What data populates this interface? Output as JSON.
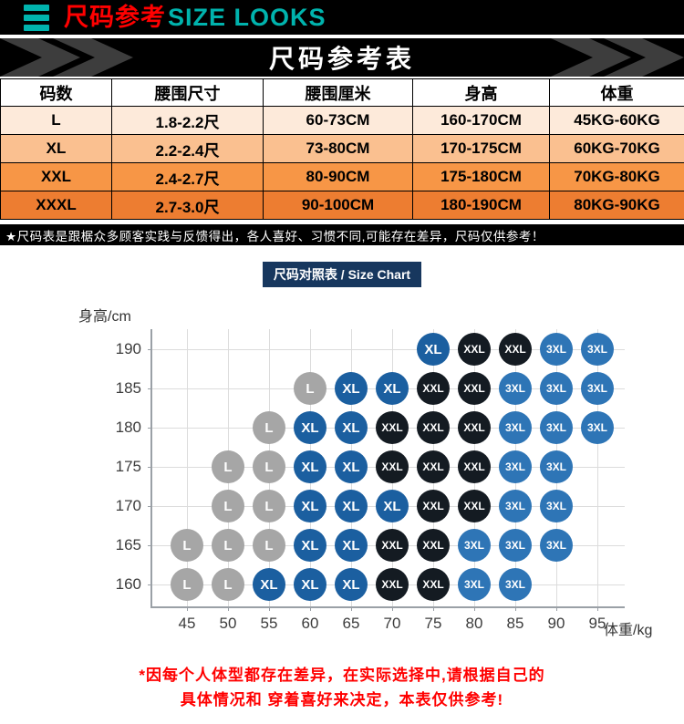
{
  "header": {
    "title_cn": "尺码参考",
    "title_en": "SIZE LOOKS",
    "title_color": "#ff0000",
    "accent_color": "#00b3ad"
  },
  "banner": {
    "title": "尺码参考表"
  },
  "size_table": {
    "headers": [
      "码数",
      "腰围尺寸",
      "腰围厘米",
      "身高",
      "体重"
    ],
    "rows": [
      {
        "cells": [
          "L",
          "1.8-2.2尺",
          "60-73CM",
          "160-170CM",
          "45KG-60KG"
        ],
        "bg": "#fdeada"
      },
      {
        "cells": [
          "XL",
          "2.2-2.4尺",
          "73-80CM",
          "170-175CM",
          "60KG-70KG"
        ],
        "bg": "#fac090"
      },
      {
        "cells": [
          "XXL",
          "2.4-2.7尺",
          "80-90CM",
          "175-180CM",
          "70KG-80KG"
        ],
        "bg": "#f79646"
      },
      {
        "cells": [
          "XXXL",
          "2.7-3.0尺",
          "90-100CM",
          "180-190CM",
          "80KG-90KG"
        ],
        "bg": "#ed7d31"
      }
    ]
  },
  "note_bar": {
    "text": "★尺码表是跟椐众多顾客实践与反馈得出，各人喜好、习惯不同,可能存在差异，尺码仅供参考！"
  },
  "chart_header": {
    "label": "尺码对照表 / Size Chart",
    "bg": "#17375e"
  },
  "chart_data": {
    "type": "scatter",
    "title": "尺码对照表 / Size Chart",
    "xlabel": "体重/kg",
    "ylabel": "身高/cm",
    "x_ticks": [
      45,
      50,
      55,
      60,
      65,
      70,
      75,
      80,
      85,
      90,
      95
    ],
    "y_ticks": [
      190,
      185,
      180,
      175,
      170,
      165,
      160
    ],
    "xlim": [
      45,
      95
    ],
    "ylim": [
      160,
      190
    ],
    "grid": true,
    "size_colors": {
      "L": "#a6a6a6",
      "XL": "#1b5fa0",
      "XXL": "#141b22",
      "3XL": "#2e75b6"
    },
    "points_by_height": [
      {
        "height": 190,
        "entries": [
          [
            75,
            "XL"
          ],
          [
            80,
            "XXL"
          ],
          [
            85,
            "XXL"
          ],
          [
            90,
            "3XL"
          ],
          [
            95,
            "3XL"
          ]
        ]
      },
      {
        "height": 185,
        "entries": [
          [
            60,
            "L"
          ],
          [
            65,
            "XL"
          ],
          [
            70,
            "XL"
          ],
          [
            75,
            "XXL"
          ],
          [
            80,
            "XXL"
          ],
          [
            85,
            "3XL"
          ],
          [
            90,
            "3XL"
          ],
          [
            95,
            "3XL"
          ]
        ]
      },
      {
        "height": 180,
        "entries": [
          [
            55,
            "L"
          ],
          [
            60,
            "XL"
          ],
          [
            65,
            "XL"
          ],
          [
            70,
            "XXL"
          ],
          [
            75,
            "XXL"
          ],
          [
            80,
            "XXL"
          ],
          [
            85,
            "3XL"
          ],
          [
            90,
            "3XL"
          ],
          [
            95,
            "3XL"
          ]
        ]
      },
      {
        "height": 175,
        "entries": [
          [
            50,
            "L"
          ],
          [
            55,
            "L"
          ],
          [
            60,
            "XL"
          ],
          [
            65,
            "XL"
          ],
          [
            70,
            "XXL"
          ],
          [
            75,
            "XXL"
          ],
          [
            80,
            "XXL"
          ],
          [
            85,
            "3XL"
          ],
          [
            90,
            "3XL"
          ]
        ]
      },
      {
        "height": 170,
        "entries": [
          [
            50,
            "L"
          ],
          [
            55,
            "L"
          ],
          [
            60,
            "XL"
          ],
          [
            65,
            "XL"
          ],
          [
            70,
            "XL"
          ],
          [
            75,
            "XXL"
          ],
          [
            80,
            "XXL"
          ],
          [
            85,
            "3XL"
          ],
          [
            90,
            "3XL"
          ]
        ]
      },
      {
        "height": 165,
        "entries": [
          [
            45,
            "L"
          ],
          [
            50,
            "L"
          ],
          [
            55,
            "L"
          ],
          [
            60,
            "XL"
          ],
          [
            65,
            "XL"
          ],
          [
            70,
            "XXL"
          ],
          [
            75,
            "XXL"
          ],
          [
            80,
            "3XL"
          ],
          [
            85,
            "3XL"
          ],
          [
            90,
            "3XL"
          ]
        ]
      },
      {
        "height": 160,
        "entries": [
          [
            45,
            "L"
          ],
          [
            50,
            "L"
          ],
          [
            55,
            "XL"
          ],
          [
            60,
            "XL"
          ],
          [
            65,
            "XL"
          ],
          [
            70,
            "XXL"
          ],
          [
            75,
            "XXL"
          ],
          [
            80,
            "3XL"
          ],
          [
            85,
            "3XL"
          ]
        ]
      }
    ]
  },
  "footer": {
    "line1": "*因每个人体型都存在差异，在实际选择中,请根据自己的",
    "line2": "具体情况和 穿着喜好来决定，本表仅供参考!",
    "color": "#ff0000"
  }
}
